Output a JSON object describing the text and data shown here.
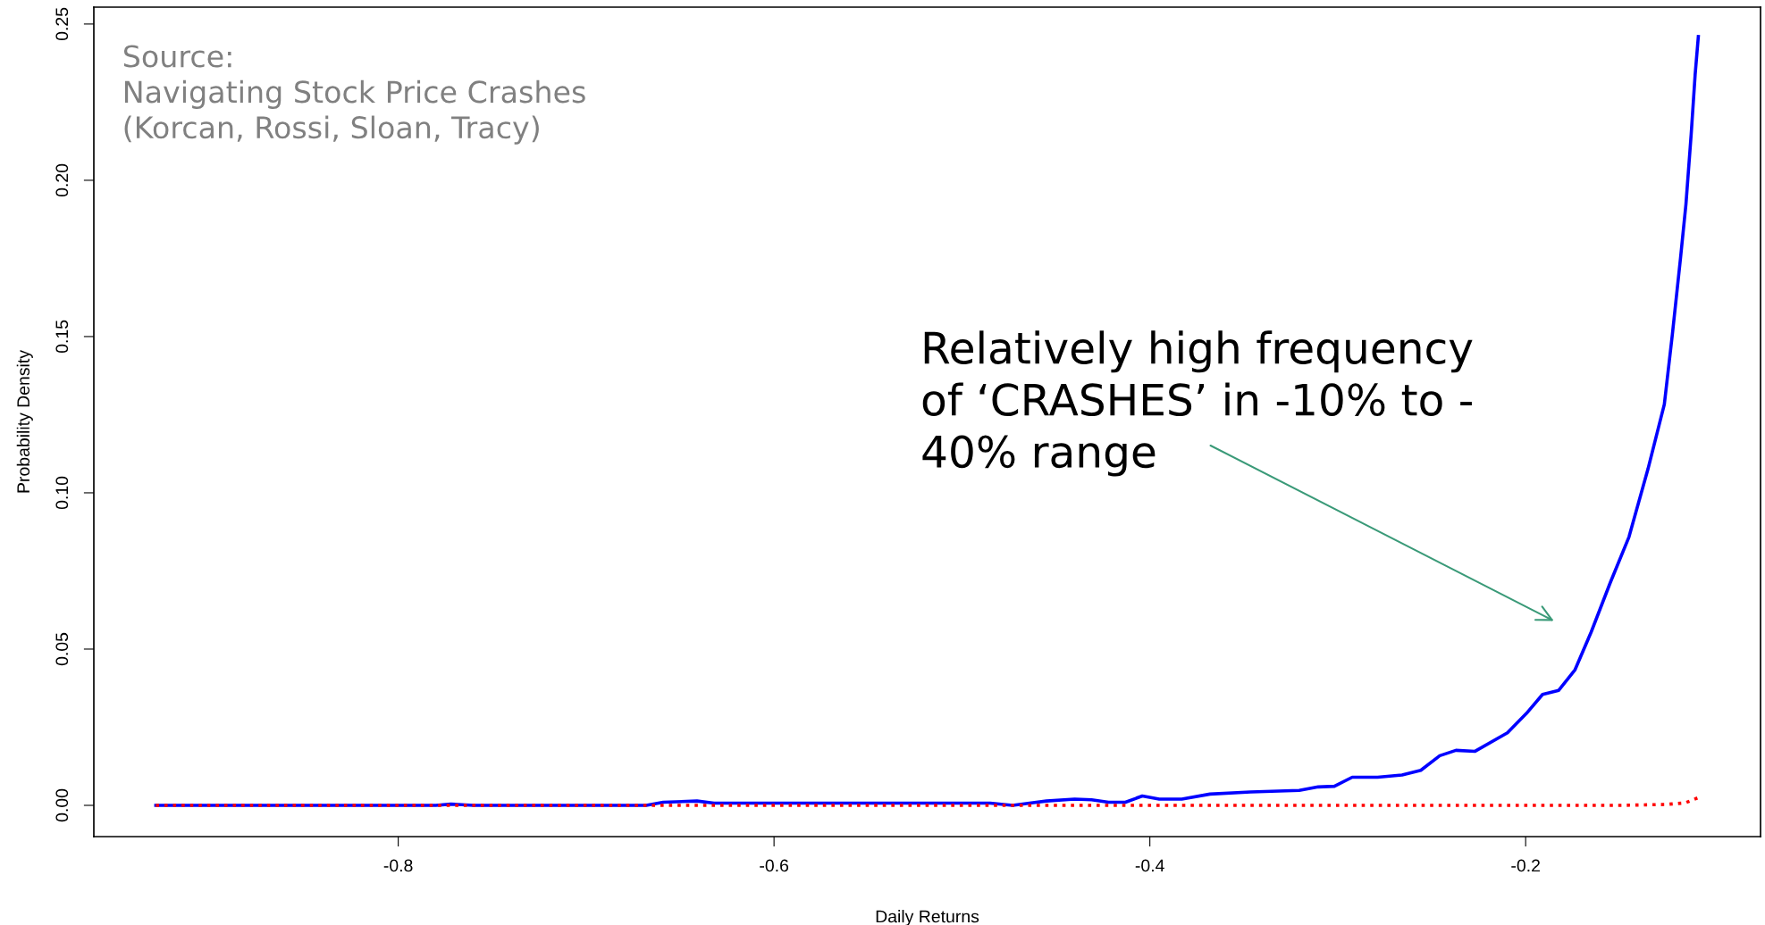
{
  "chart_data": {
    "type": "line",
    "xlabel": "Daily Returns",
    "ylabel": "Probability Density",
    "xlim": [
      -0.962,
      -0.075
    ],
    "ylim": [
      -0.01,
      0.2554
    ],
    "xticks": [
      -0.8,
      -0.6,
      -0.4,
      -0.2
    ],
    "yticks": [
      {
        "value": 0.0,
        "label": "0.00"
      },
      {
        "value": 0.05,
        "label": "0.05"
      },
      {
        "value": 0.1,
        "label": "0.10"
      },
      {
        "value": 0.15,
        "label": "0.15"
      },
      {
        "value": 0.2,
        "label": "0.20"
      },
      {
        "value": 0.25,
        "label": "0.25"
      }
    ],
    "grid": false,
    "legend": false,
    "marker": "none",
    "series": [
      {
        "color": "#0000ff",
        "line_style": "solid",
        "x": [
          -0.929,
          -0.78,
          -0.772,
          -0.76,
          -0.668,
          -0.659,
          -0.641,
          -0.632,
          -0.605,
          -0.569,
          -0.503,
          -0.485,
          -0.473,
          -0.464,
          -0.455,
          -0.44,
          -0.431,
          -0.422,
          -0.413,
          -0.404,
          -0.395,
          -0.383,
          -0.368,
          -0.3464,
          -0.3205,
          -0.3104,
          -0.3018,
          -0.2923,
          -0.2788,
          -0.2658,
          -0.2558,
          -0.2457,
          -0.2371,
          -0.2269,
          -0.2097,
          -0.1996,
          -0.191,
          -0.1824,
          -0.1737,
          -0.1651,
          -0.155,
          -0.145,
          -0.1349,
          -0.1262,
          -0.1219,
          -0.1176,
          -0.1147,
          -0.1119,
          -0.1098,
          -0.1081
        ],
        "values": [
          0.0,
          0.0,
          0.0004,
          0.0,
          0.0,
          0.001,
          0.0014,
          0.0007,
          0.0007,
          0.0007,
          0.0007,
          0.0007,
          0.0,
          0.0007,
          0.0014,
          0.002,
          0.0018,
          0.001,
          0.001,
          0.003,
          0.002,
          0.002,
          0.0036,
          0.0043,
          0.0048,
          0.0059,
          0.0061,
          0.009,
          0.009,
          0.0097,
          0.0112,
          0.0159,
          0.0176,
          0.0173,
          0.0232,
          0.0294,
          0.0355,
          0.0368,
          0.0434,
          0.0555,
          0.0712,
          0.0859,
          0.1076,
          0.1283,
          0.1508,
          0.175,
          0.1923,
          0.2148,
          0.2338,
          0.246
        ]
      },
      {
        "color": "#ff0000",
        "line_style": "dotted",
        "x": [
          -0.929,
          -0.15,
          -0.125,
          -0.115,
          -0.108
        ],
        "values": [
          0.0,
          0.0,
          0.0003,
          0.0008,
          0.0025
        ]
      }
    ],
    "annotations": [
      "Source:\nNavigating Stock Price Crashes\n(Korcan, Rossi, Sloan, Tracy)",
      "Relatively high frequency\nof ‘CRASHES’ in -10% to -\n40% range"
    ]
  }
}
